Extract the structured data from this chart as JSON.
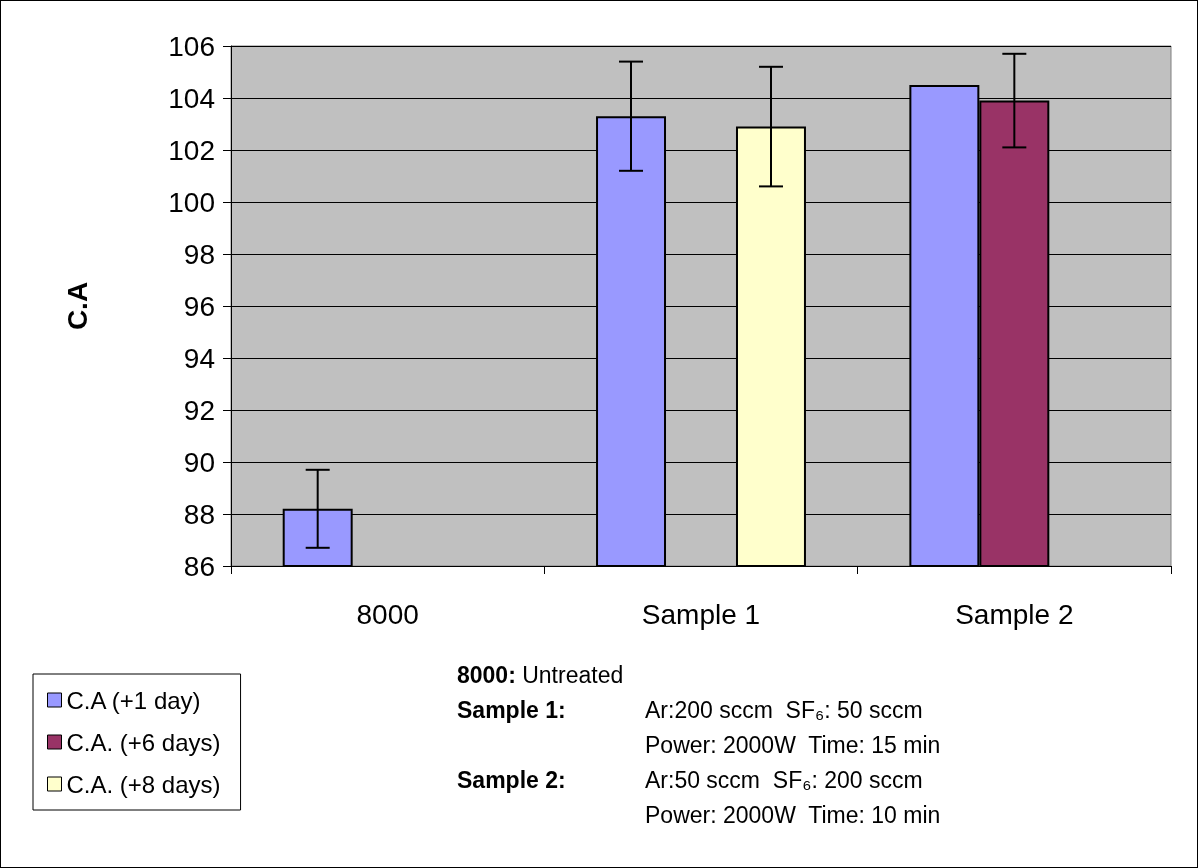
{
  "chart_data": {
    "type": "bar",
    "ylabel": "C.A",
    "categories": [
      "8000",
      "Sample 1",
      "Sample 2"
    ],
    "series": [
      {
        "name": "C.A (+1 day)",
        "color": "#9999ff",
        "values": [
          88.2,
          103.3,
          104.5
        ],
        "errors": [
          1.5,
          2.1,
          null
        ]
      },
      {
        "name": "C.A. (+6 days)",
        "color": "#993366",
        "values": [
          null,
          null,
          103.9
        ],
        "errors": [
          null,
          null,
          1.8
        ]
      },
      {
        "name": "C.A. (+8 days)",
        "color": "#ffffcc",
        "values": [
          null,
          102.9,
          null
        ],
        "errors": [
          null,
          2.3,
          null
        ]
      }
    ],
    "ylim": [
      86,
      106
    ],
    "yticks": [
      86,
      88,
      90,
      92,
      94,
      96,
      98,
      100,
      102,
      104,
      106
    ],
    "grid": "y",
    "legend": "bottom left",
    "annotations": [
      "8000: Untreated",
      "Sample 1: Ar:200 sccm  SF₆: 50 sccm\nPower: 2000W  Time: 15 min",
      "Sample 2: Ar:50 sccm  SF₆: 200 sccm\nPower: 2000W  Time: 10 min"
    ]
  }
}
